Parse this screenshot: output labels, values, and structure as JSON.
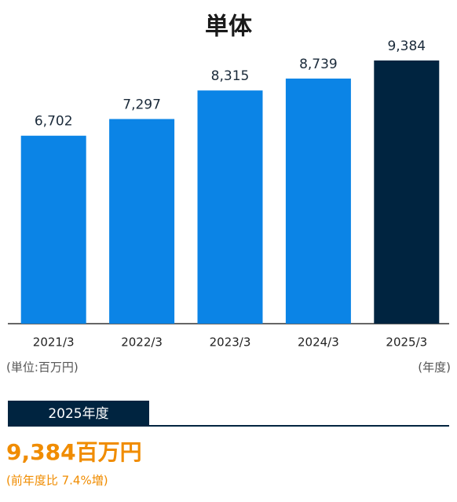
{
  "chart_data": {
    "type": "bar",
    "title": "単体",
    "categories": [
      "2021/3",
      "2022/3",
      "2023/3",
      "2024/3",
      "2025/3"
    ],
    "values": [
      6702,
      7297,
      8315,
      8739,
      9384
    ],
    "value_labels": [
      "6,702",
      "7,297",
      "8,315",
      "8,739",
      "9,384"
    ],
    "colors": [
      "#0b84e6",
      "#0b84e6",
      "#0b84e6",
      "#0b84e6",
      "#002440"
    ],
    "unit_note": "(単位:百万円)",
    "x_note": "(年度)"
  },
  "highlight": {
    "label": "2025年度",
    "value": "9,384百万円",
    "note": "(前年度比 7.4%増)"
  }
}
